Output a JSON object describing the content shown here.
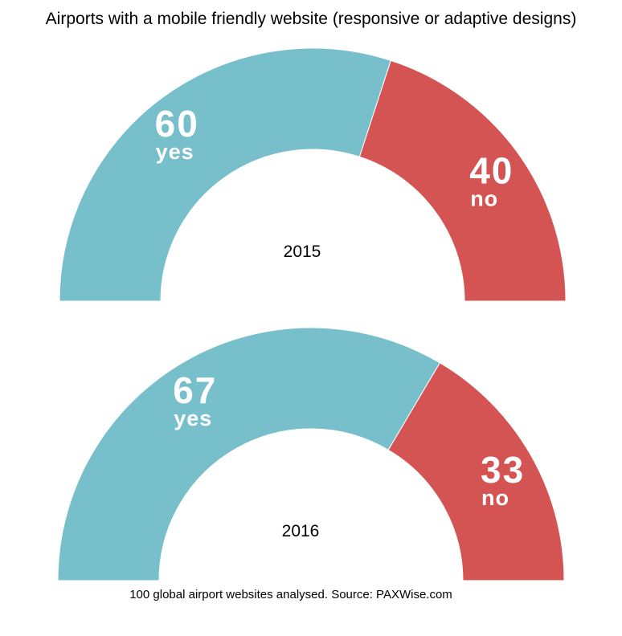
{
  "chart_data": {
    "type": "pie",
    "title": "Airports with a mobile friendly website (responsive or adaptive designs)",
    "note": "100 global airport websites analysed. Source: PAXWise.com",
    "charts": [
      {
        "label": "2015",
        "slices": [
          {
            "name": "yes",
            "value": 60
          },
          {
            "name": "no",
            "value": 40
          }
        ]
      },
      {
        "label": "2016",
        "slices": [
          {
            "name": "yes",
            "value": 67
          },
          {
            "name": "no",
            "value": 33
          }
        ]
      }
    ]
  },
  "colors": {
    "yes": "#77c0cb",
    "no": "#d45454",
    "value_text": "#ffffff",
    "center_text": "#000000"
  }
}
